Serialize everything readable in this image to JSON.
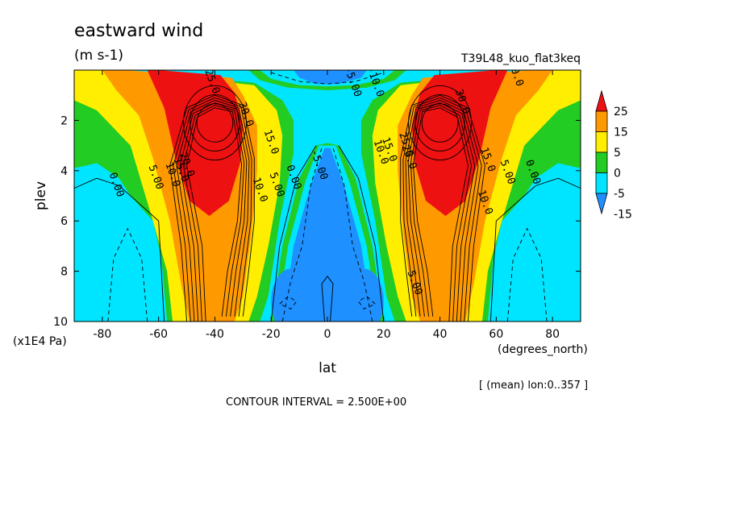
{
  "chart_data": {
    "type": "contour",
    "title": "eastward wind",
    "units": "(m s-1)",
    "experiment": "T39L48_kuo_flat3keq",
    "xlabel": "lat",
    "xunits": "(degrees_north)",
    "ylabel": "plev",
    "yunits": "(x1E4 Pa)",
    "xlim": [
      -90,
      90
    ],
    "ylim": [
      10,
      0
    ],
    "x_ticks": [
      "-80",
      "-60",
      "-40",
      "-20",
      "0",
      "20",
      "40",
      "60",
      "80"
    ],
    "x_tick_values": [
      -80,
      -60,
      -40,
      -20,
      0,
      20,
      40,
      60,
      80
    ],
    "y_ticks": [
      "2",
      "4",
      "6",
      "8",
      "10"
    ],
    "y_tick_values": [
      2,
      4,
      6,
      8,
      10
    ],
    "contour_interval": "CONTOUR INTERVAL = 2.500E+00",
    "mean_note": "[ (mean) lon:0..357 ]",
    "colorbar": {
      "labels": [
        "25",
        "15",
        "5",
        "0",
        "-5",
        "-15"
      ],
      "levels": [
        -15,
        -5,
        0,
        5,
        15,
        25
      ],
      "colors": [
        "#1e90ff",
        "#00e5ff",
        "#22cc22",
        "#ffee00",
        "#ff9900",
        "#ee1111"
      ]
    },
    "contour_labels": [
      {
        "text": "0.00",
        "lat": -76,
        "plev": 4.6
      },
      {
        "text": "5.00",
        "lat": -62,
        "plev": 4.3
      },
      {
        "text": "10.0",
        "lat": -56,
        "plev": 4.2
      },
      {
        "text": "15.0",
        "lat": -53,
        "plev": 4.0
      },
      {
        "text": "20.0",
        "lat": -51,
        "plev": 3.8
      },
      {
        "text": "25.0",
        "lat": -42,
        "plev": 0.5
      },
      {
        "text": "30.0",
        "lat": -30,
        "plev": 1.8
      },
      {
        "text": "15.0",
        "lat": -21,
        "plev": 2.9
      },
      {
        "text": "10.0",
        "lat": -25,
        "plev": 4.8
      },
      {
        "text": "5.00",
        "lat": -19,
        "plev": 4.6
      },
      {
        "text": "0.00",
        "lat": -13,
        "plev": 4.3
      },
      {
        "text": "-5.00",
        "lat": -4,
        "plev": 3.8
      },
      {
        "text": "-5.00",
        "lat": 8,
        "plev": 0.5
      },
      {
        "text": "-10.0",
        "lat": 16,
        "plev": 0.5
      },
      {
        "text": "10.0",
        "lat": 18,
        "plev": 3.3
      },
      {
        "text": "15.0",
        "lat": 21,
        "plev": 3.2
      },
      {
        "text": "20.0",
        "lat": 28,
        "plev": 3.5
      },
      {
        "text": "25.0",
        "lat": 27,
        "plev": 3.0
      },
      {
        "text": "30.0",
        "lat": 47,
        "plev": 1.3
      },
      {
        "text": "20.0",
        "lat": 66,
        "plev": 0.2
      },
      {
        "text": "15.0",
        "lat": 56,
        "plev": 3.6
      },
      {
        "text": "10.0",
        "lat": 55,
        "plev": 5.3
      },
      {
        "text": "5.00",
        "lat": 63,
        "plev": 4.1
      },
      {
        "text": "0.00",
        "lat": 72,
        "plev": 4.1
      },
      {
        "text": "5.00",
        "lat": 30,
        "plev": 8.5
      }
    ]
  }
}
